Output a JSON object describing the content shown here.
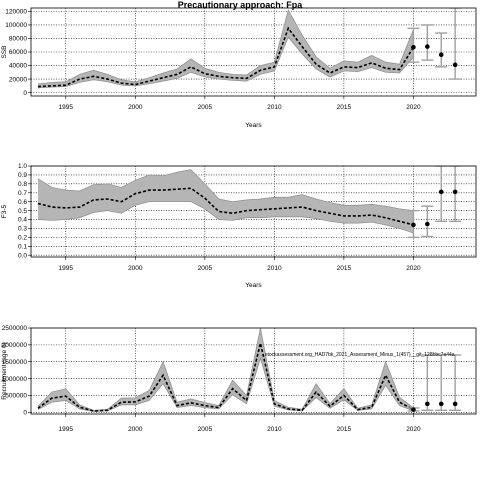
{
  "title": "Precautionary approach: Fpa",
  "chart_data": [
    {
      "type": "line",
      "ylabel": "SSB",
      "xlabel": "Years",
      "xlim": [
        1992.5,
        2024.5
      ],
      "ylim": [
        -5000,
        125000
      ],
      "x_ticks": [
        1995,
        2000,
        2005,
        2010,
        2015,
        2020
      ],
      "y_ticks": [
        0,
        20000,
        40000,
        60000,
        80000,
        100000,
        120000
      ],
      "grid": true,
      "years": [
        1993,
        1994,
        1995,
        1996,
        1997,
        1998,
        1999,
        2000,
        2001,
        2002,
        2003,
        2004,
        2005,
        2006,
        2007,
        2008,
        2009,
        2010,
        2011,
        2012,
        2013,
        2014,
        2015,
        2016,
        2017,
        2018,
        2019,
        2020
      ],
      "median": [
        9000,
        10000,
        11000,
        20000,
        24000,
        20000,
        14000,
        12000,
        17000,
        22000,
        27000,
        38000,
        28000,
        24000,
        22000,
        21000,
        33000,
        38000,
        95000,
        68000,
        42000,
        29000,
        38000,
        37000,
        44000,
        36000,
        34000,
        67000
      ],
      "lower": [
        7000,
        8000,
        9000,
        15000,
        19000,
        16000,
        11000,
        10000,
        13000,
        17000,
        21000,
        30000,
        23000,
        20000,
        18000,
        17000,
        27000,
        32000,
        82000,
        57000,
        35000,
        23000,
        32000,
        31000,
        37000,
        30000,
        29000,
        52000
      ],
      "upper": [
        13000,
        15000,
        16000,
        27000,
        33000,
        27000,
        19000,
        16000,
        22000,
        29000,
        35000,
        50000,
        36000,
        30000,
        27000,
        26000,
        40000,
        45000,
        122000,
        85000,
        53000,
        36000,
        47000,
        45000,
        55000,
        45000,
        42000,
        93000
      ],
      "projection_x": [
        2020,
        2021,
        2022,
        2023
      ],
      "projection_median": [
        67000,
        68000,
        56000,
        41000
      ],
      "projection_lower": [
        45000,
        48000,
        38000,
        20000
      ],
      "projection_upper": [
        95000,
        100000,
        88000,
        125000
      ]
    },
    {
      "type": "line",
      "ylabel": "F3-5",
      "xlabel": "Years",
      "xlim": [
        1992.5,
        2024.5
      ],
      "ylim": [
        -0.02,
        1.0
      ],
      "x_ticks": [
        1995,
        2000,
        2005,
        2010,
        2015,
        2020
      ],
      "y_ticks": [
        0.0,
        0.1,
        0.2,
        0.3,
        0.4,
        0.5,
        0.6,
        0.7,
        0.8,
        0.9,
        1.0
      ],
      "grid": true,
      "years": [
        1993,
        1994,
        1995,
        1996,
        1997,
        1998,
        1999,
        2000,
        2001,
        2002,
        2003,
        2004,
        2005,
        2006,
        2007,
        2008,
        2009,
        2010,
        2011,
        2012,
        2013,
        2014,
        2015,
        2016,
        2017,
        2018,
        2019,
        2020
      ],
      "median": [
        0.58,
        0.54,
        0.53,
        0.54,
        0.62,
        0.63,
        0.6,
        0.69,
        0.73,
        0.73,
        0.74,
        0.75,
        0.64,
        0.49,
        0.47,
        0.5,
        0.51,
        0.52,
        0.53,
        0.54,
        0.5,
        0.47,
        0.44,
        0.44,
        0.45,
        0.42,
        0.38,
        0.34
      ],
      "lower": [
        0.4,
        0.39,
        0.4,
        0.42,
        0.48,
        0.5,
        0.47,
        0.56,
        0.6,
        0.6,
        0.6,
        0.6,
        0.52,
        0.4,
        0.39,
        0.42,
        0.42,
        0.43,
        0.43,
        0.43,
        0.41,
        0.38,
        0.36,
        0.36,
        0.37,
        0.34,
        0.3,
        0.25
      ],
      "upper": [
        0.86,
        0.76,
        0.73,
        0.72,
        0.79,
        0.8,
        0.76,
        0.84,
        0.9,
        0.89,
        0.93,
        0.96,
        0.8,
        0.63,
        0.6,
        0.62,
        0.63,
        0.65,
        0.65,
        0.68,
        0.63,
        0.59,
        0.56,
        0.56,
        0.57,
        0.55,
        0.52,
        0.5
      ],
      "projection_x": [
        2020,
        2021,
        2022,
        2023
      ],
      "projection_median": [
        0.34,
        0.35,
        0.71,
        0.71
      ],
      "projection_lower": [
        0.2,
        0.21,
        0.38,
        0.38
      ],
      "projection_upper": [
        0.5,
        0.55,
        1.0,
        1.0
      ]
    },
    {
      "type": "line",
      "ylabel": "Recruitment (age 0)",
      "xlabel": "",
      "xlim": [
        1992.5,
        2024.5
      ],
      "ylim": [
        -50000,
        2500000
      ],
      "x_ticks": [
        1995,
        2000,
        2005,
        2010,
        2015,
        2020
      ],
      "y_ticks": [
        0,
        500000,
        1000000,
        1500000,
        2000000,
        2500000
      ],
      "grid": true,
      "annotation": "stockassessment.org_HAD7bk_2021_Assessment_Minus_1(457)__git_128bbc7e44a",
      "years": [
        1993,
        1994,
        1995,
        1996,
        1997,
        1998,
        1999,
        2000,
        2001,
        2002,
        2003,
        2004,
        2005,
        2006,
        2007,
        2008,
        2009,
        2010,
        2011,
        2012,
        2013,
        2014,
        2015,
        2016,
        2017,
        2018,
        2019,
        2020
      ],
      "median": [
        120000,
        420000,
        480000,
        150000,
        40000,
        60000,
        300000,
        310000,
        480000,
        1100000,
        200000,
        280000,
        200000,
        140000,
        700000,
        350000,
        2050000,
        250000,
        100000,
        60000,
        600000,
        180000,
        500000,
        80000,
        150000,
        1100000,
        300000,
        80000
      ],
      "lower": [
        80000,
        300000,
        350000,
        100000,
        25000,
        40000,
        220000,
        220000,
        350000,
        850000,
        140000,
        200000,
        140000,
        100000,
        520000,
        250000,
        1600000,
        180000,
        70000,
        40000,
        440000,
        120000,
        370000,
        55000,
        100000,
        800000,
        200000,
        40000
      ],
      "upper": [
        180000,
        600000,
        700000,
        220000,
        60000,
        90000,
        420000,
        430000,
        650000,
        1500000,
        300000,
        400000,
        290000,
        200000,
        950000,
        500000,
        2500000,
        350000,
        150000,
        90000,
        850000,
        260000,
        700000,
        120000,
        220000,
        1500000,
        450000,
        130000
      ],
      "projection_x": [
        2020,
        2021,
        2022,
        2023
      ],
      "projection_median": [
        80000,
        250000,
        250000,
        250000
      ],
      "projection_lower": [
        40000,
        60000,
        60000,
        60000
      ],
      "projection_upper": [
        130000,
        1700000,
        1700000,
        1700000
      ]
    }
  ]
}
